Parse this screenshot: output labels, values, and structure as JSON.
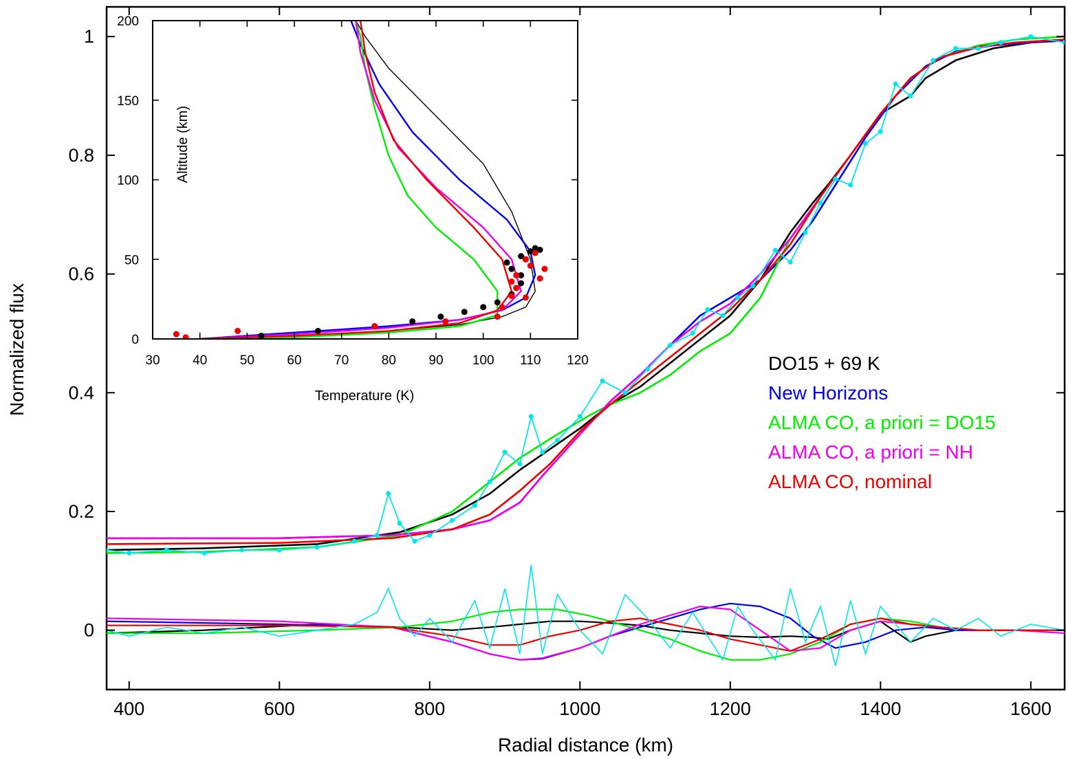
{
  "chart_data": [
    {
      "type": "line",
      "xlabel": "Radial distance (km)",
      "ylabel": "Normalized flux",
      "xlim": [
        370,
        1645
      ],
      "ylim": [
        -0.1,
        1.05
      ],
      "xticks": [
        "400",
        "600",
        "800",
        "1000",
        "1200",
        "1400",
        "1600"
      ],
      "yticks": [
        "0",
        "0.2",
        "0.4",
        "0.6",
        "0.8",
        "1"
      ],
      "legend_position": "middle-right",
      "series": [
        {
          "name": "DO15 + 69 K",
          "color": "#000000",
          "x": [
            370,
            500,
            650,
            760,
            830,
            880,
            920,
            960,
            1000,
            1040,
            1080,
            1120,
            1160,
            1200,
            1240,
            1280,
            1310,
            1330,
            1360,
            1400,
            1440,
            1460,
            1500,
            1550,
            1600,
            1645
          ],
          "y": [
            0.135,
            0.138,
            0.145,
            0.165,
            0.195,
            0.23,
            0.27,
            0.305,
            0.34,
            0.38,
            0.41,
            0.45,
            0.49,
            0.53,
            0.59,
            0.67,
            0.72,
            0.75,
            0.8,
            0.87,
            0.9,
            0.93,
            0.96,
            0.98,
            0.99,
            0.995
          ],
          "residual_y": [
            -0.005,
            0.0,
            0.01,
            0.005,
            0.0,
            0.005,
            0.01,
            0.015,
            0.015,
            0.012,
            0.008,
            0.0,
            -0.005,
            -0.01,
            -0.012,
            -0.01,
            -0.012,
            -0.015,
            0.0,
            0.015,
            -0.02,
            -0.01,
            0.0,
            0.0,
            0.0,
            0.0
          ]
        },
        {
          "name": "New Horizons",
          "color": "#0000ee",
          "x": [
            370,
            600,
            750,
            830,
            880,
            920,
            950,
            1000,
            1040,
            1080,
            1120,
            1160,
            1200,
            1240,
            1280,
            1310,
            1340,
            1380,
            1420,
            1460,
            1500,
            1550,
            1600,
            1645
          ],
          "y": [
            0.155,
            0.155,
            0.16,
            0.17,
            0.185,
            0.215,
            0.26,
            0.33,
            0.385,
            0.43,
            0.48,
            0.53,
            0.56,
            0.59,
            0.64,
            0.69,
            0.75,
            0.83,
            0.9,
            0.95,
            0.975,
            0.985,
            0.99,
            0.993
          ],
          "residual_y": [
            0.015,
            0.01,
            0.005,
            -0.02,
            -0.04,
            -0.05,
            -0.048,
            -0.03,
            -0.01,
            0.005,
            0.02,
            0.035,
            0.045,
            0.04,
            0.02,
            -0.01,
            -0.03,
            -0.02,
            0.0,
            0.005,
            0.0,
            0.0,
            0.0,
            0.0
          ]
        },
        {
          "name": "ALMA CO, a priori = DO15",
          "color": "#00ee00",
          "x": [
            370,
            500,
            650,
            760,
            830,
            880,
            920,
            970,
            1010,
            1040,
            1080,
            1120,
            1160,
            1200,
            1240,
            1280,
            1320,
            1360,
            1400,
            1440,
            1480,
            1530,
            1580,
            1645
          ],
          "y": [
            0.13,
            0.132,
            0.14,
            0.16,
            0.2,
            0.25,
            0.29,
            0.33,
            0.36,
            0.38,
            0.4,
            0.43,
            0.47,
            0.5,
            0.56,
            0.66,
            0.73,
            0.8,
            0.87,
            0.93,
            0.965,
            0.985,
            0.995,
            1.0
          ],
          "residual_y": [
            -0.005,
            -0.005,
            0.0,
            0.005,
            0.015,
            0.03,
            0.035,
            0.035,
            0.025,
            0.015,
            0.0,
            -0.015,
            -0.035,
            -0.05,
            -0.05,
            -0.04,
            -0.02,
            0.01,
            0.02,
            0.015,
            0.005,
            0.0,
            0.0,
            0.0
          ]
        },
        {
          "name": "ALMA CO, a priori = NH",
          "color": "#ee00ee",
          "x": [
            370,
            600,
            750,
            830,
            880,
            920,
            950,
            1000,
            1040,
            1080,
            1120,
            1160,
            1200,
            1240,
            1280,
            1320,
            1360,
            1400,
            1440,
            1480,
            1530,
            1580,
            1645
          ],
          "y": [
            0.155,
            0.155,
            0.16,
            0.17,
            0.185,
            0.215,
            0.26,
            0.33,
            0.385,
            0.43,
            0.48,
            0.52,
            0.55,
            0.6,
            0.66,
            0.73,
            0.8,
            0.87,
            0.93,
            0.965,
            0.982,
            0.99,
            0.995
          ],
          "residual_y": [
            0.02,
            0.015,
            0.005,
            -0.02,
            -0.04,
            -0.05,
            -0.047,
            -0.03,
            -0.01,
            0.01,
            0.025,
            0.04,
            0.035,
            0.0,
            -0.035,
            -0.03,
            0.0,
            0.015,
            0.01,
            0.005,
            0.0,
            0.0,
            -0.005
          ]
        },
        {
          "name": "ALMA CO, nominal",
          "color": "#ee0000",
          "x": [
            370,
            600,
            750,
            830,
            880,
            920,
            960,
            1000,
            1040,
            1080,
            1120,
            1160,
            1200,
            1240,
            1280,
            1320,
            1360,
            1400,
            1440,
            1480,
            1530,
            1580,
            1645
          ],
          "y": [
            0.145,
            0.147,
            0.155,
            0.17,
            0.195,
            0.235,
            0.28,
            0.335,
            0.38,
            0.42,
            0.46,
            0.5,
            0.54,
            0.59,
            0.65,
            0.73,
            0.8,
            0.87,
            0.93,
            0.965,
            0.983,
            0.99,
            0.995
          ],
          "residual_y": [
            0.008,
            0.008,
            0.005,
            -0.01,
            -0.025,
            -0.025,
            -0.01,
            0.0,
            0.015,
            0.02,
            0.01,
            0.0,
            -0.015,
            -0.025,
            -0.035,
            -0.015,
            0.01,
            0.02,
            0.01,
            0.005,
            0.0,
            0.0,
            0.0
          ]
        },
        {
          "name": "",
          "color": "#00e5ee",
          "style": "data points with line",
          "x": [
            370,
            400,
            450,
            500,
            550,
            600,
            650,
            700,
            730,
            745,
            760,
            780,
            800,
            830,
            860,
            880,
            900,
            920,
            935,
            950,
            970,
            1000,
            1030,
            1060,
            1090,
            1120,
            1150,
            1170,
            1190,
            1210,
            1230,
            1260,
            1280,
            1300,
            1320,
            1340,
            1360,
            1380,
            1400,
            1420,
            1440,
            1470,
            1500,
            1530,
            1560,
            1600,
            1645
          ],
          "y": [
            0.135,
            0.13,
            0.135,
            0.13,
            0.135,
            0.135,
            0.14,
            0.15,
            0.16,
            0.23,
            0.18,
            0.15,
            0.16,
            0.185,
            0.21,
            0.25,
            0.3,
            0.28,
            0.36,
            0.3,
            0.32,
            0.36,
            0.42,
            0.4,
            0.44,
            0.48,
            0.5,
            0.54,
            0.53,
            0.56,
            0.58,
            0.64,
            0.62,
            0.67,
            0.72,
            0.76,
            0.75,
            0.82,
            0.84,
            0.92,
            0.9,
            0.96,
            0.98,
            0.98,
            0.99,
            1.0,
            0.99
          ],
          "residual_y": [
            0.0,
            -0.01,
            0.005,
            -0.005,
            0.005,
            -0.01,
            0.0,
            0.01,
            0.03,
            0.07,
            0.02,
            -0.01,
            0.02,
            -0.02,
            0.05,
            -0.03,
            0.07,
            -0.04,
            0.11,
            -0.04,
            0.06,
            0.0,
            -0.04,
            0.06,
            0.02,
            -0.03,
            0.03,
            -0.01,
            -0.05,
            0.04,
            0.0,
            -0.05,
            0.07,
            -0.02,
            0.04,
            -0.06,
            0.05,
            -0.04,
            0.04,
            0.01,
            -0.02,
            0.02,
            0.0,
            0.02,
            -0.01,
            0.01,
            0.0
          ]
        }
      ]
    },
    {
      "type": "line",
      "xlabel": "Temperature (K)",
      "ylabel": "Altitude (km)",
      "xlim": [
        30,
        120
      ],
      "ylim": [
        0,
        200
      ],
      "xticks": [
        "30",
        "40",
        "50",
        "60",
        "70",
        "80",
        "90",
        "100",
        "110",
        "120"
      ],
      "yticks": [
        "0",
        "50",
        "100",
        "150",
        "200"
      ],
      "series": [
        {
          "name": "DO15 + 69 K",
          "color": "#000000",
          "x": [
            40,
            60,
            80,
            95,
            104,
            109,
            111,
            110,
            106,
            100,
            90,
            80,
            75,
            73
          ],
          "y": [
            0,
            2,
            5,
            9,
            14,
            20,
            30,
            50,
            80,
            110,
            140,
            170,
            190,
            200
          ]
        },
        {
          "name": "New Horizons",
          "color": "#0000ee",
          "x": [
            40,
            60,
            80,
            95,
            104,
            109,
            111,
            110,
            105,
            95,
            85,
            78,
            74,
            72
          ],
          "y": [
            0,
            4,
            8,
            12,
            18,
            26,
            40,
            55,
            75,
            100,
            130,
            160,
            185,
            200
          ]
        },
        {
          "name": "ALMA CO, a priori = DO15",
          "color": "#00ee00",
          "x": [
            40,
            60,
            80,
            95,
            103,
            103,
            98,
            90,
            84,
            80,
            77,
            75,
            74,
            73
          ],
          "y": [
            0,
            1,
            4,
            8,
            15,
            30,
            50,
            70,
            90,
            115,
            145,
            170,
            190,
            200
          ]
        },
        {
          "name": "ALMA CO, a priori = NH",
          "color": "#ee00ee",
          "x": [
            40,
            60,
            80,
            95,
            104,
            108,
            106,
            100,
            90,
            82,
            77,
            74,
            73
          ],
          "y": [
            0,
            3,
            7,
            12,
            18,
            30,
            50,
            70,
            95,
            120,
            150,
            180,
            200
          ]
        },
        {
          "name": "ALMA CO, nominal",
          "color": "#ee0000",
          "x": [
            40,
            60,
            80,
            95,
            103,
            106,
            104,
            98,
            88,
            81,
            77,
            75,
            74
          ],
          "y": [
            0,
            2,
            5,
            10,
            18,
            30,
            50,
            70,
            100,
            125,
            155,
            180,
            200
          ]
        },
        {
          "name": "",
          "color": "#000000",
          "style": "points",
          "x": [
            53,
            65,
            77,
            85,
            91,
            96,
            100,
            103,
            106,
            107,
            108,
            108,
            106,
            105,
            108,
            110,
            111,
            112,
            109
          ],
          "y": [
            2,
            5,
            8,
            11,
            14,
            17,
            20,
            23,
            28,
            32,
            35,
            40,
            44,
            48,
            52,
            55,
            57,
            56,
            50
          ]
        },
        {
          "name": "",
          "color": "#ee0000",
          "style": "points",
          "x": [
            35,
            37,
            48,
            77,
            92,
            103,
            104,
            106,
            107,
            109,
            110,
            111,
            112,
            113,
            107,
            106,
            109
          ],
          "y": [
            3,
            1,
            5,
            8,
            11,
            14,
            20,
            27,
            32,
            26,
            46,
            54,
            38,
            44,
            40,
            36,
            50
          ]
        }
      ]
    }
  ]
}
